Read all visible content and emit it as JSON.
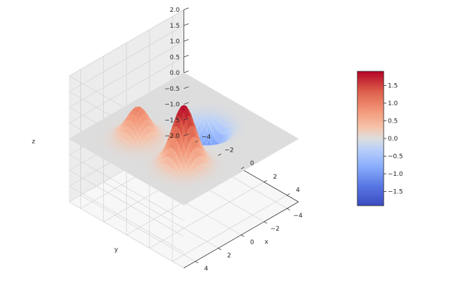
{
  "chart_data": {
    "type": "surface",
    "title": "",
    "xlabel": "x",
    "ylabel": "y",
    "zlabel": "z",
    "xlim": [
      -5,
      5
    ],
    "ylim": [
      -5,
      5
    ],
    "zlim": [
      -2,
      2
    ],
    "x_ticks": [
      "−4",
      "−2",
      "0",
      "2",
      "4"
    ],
    "y_ticks": [
      "4",
      "2",
      "0",
      "−2",
      "−4"
    ],
    "z_ticks": [
      "−2.0",
      "−1.5",
      "−1.0",
      "−0.5",
      "0.0",
      "0.5",
      "1.0",
      "1.5",
      "2.0"
    ],
    "colormap": "coolwarm",
    "colorbar": {
      "range": [
        -1.9,
        1.9
      ],
      "ticks": [
        "1.5",
        "1.0",
        "0.5",
        "0.0",
        "−0.5",
        "−1.0",
        "−1.5"
      ],
      "low_color": "#3b4cc0",
      "mid_color": "#dddddd",
      "high_color": "#b40426"
    },
    "grid": true,
    "peaks": [
      {
        "x": 2,
        "y": 2,
        "z": 1.9
      },
      {
        "x": -2,
        "y": 2,
        "z": 1.0
      },
      {
        "x": 0,
        "y": -2,
        "z": -1.9
      }
    ]
  }
}
